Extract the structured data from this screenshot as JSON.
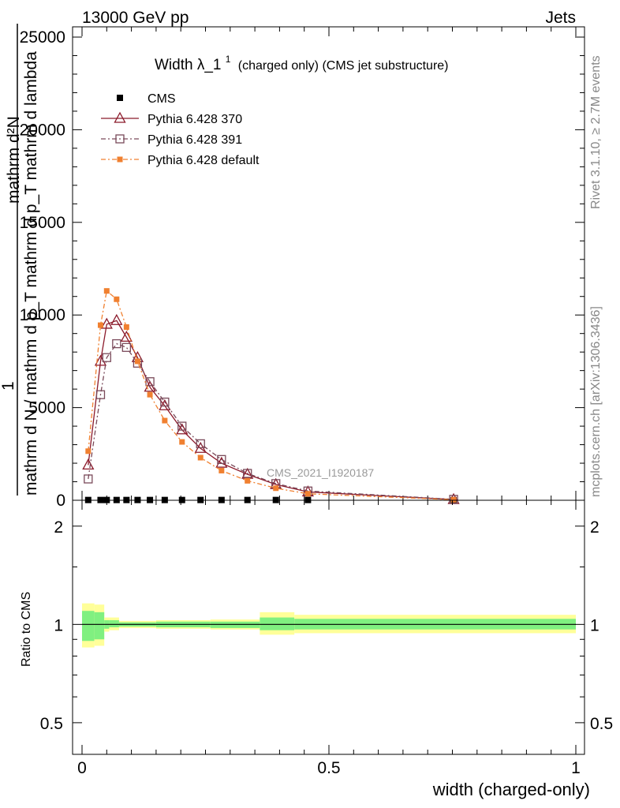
{
  "header": {
    "left": "13000 GeV pp",
    "right": "Jets"
  },
  "side": {
    "rivet": "Rivet 3.1.10, ≥ 2.7M events",
    "mcplots": "mcplots.cern.ch [arXiv:1306.3436]"
  },
  "main_panel": {
    "title_main": "Width λ_1",
    "title_sup": "1",
    "title_rest": "(charged only) (CMS jet substructure)",
    "ylabel_num": "1",
    "ylabel_den": "mathrm d N / mathrm d p_T mathrm d p_T mathrm d lambda",
    "ylabel_frac_num": "mathrm d²N",
    "watermark": "CMS_2021_I1920187",
    "yticks": [
      "0",
      "5000",
      "10000",
      "15000",
      "20000",
      "25000"
    ]
  },
  "ratio_panel": {
    "ylabel": "Ratio to CMS",
    "yticks": [
      "0.5",
      "1",
      "2"
    ],
    "xticks": [
      "0",
      "0.5",
      "1"
    ]
  },
  "xlabel": "width (charged-only)",
  "colors": {
    "cms": "#000000",
    "p370": "#8b1a2b",
    "p391": "#7a4a5a",
    "pdef": "#f08030",
    "band_inner": "#80f080",
    "band_outer": "#ffff99"
  },
  "chart_data": {
    "type": "line",
    "x": [
      0.0125,
      0.0375,
      0.05,
      0.07,
      0.09,
      0.1125,
      0.1375,
      0.1675,
      0.2025,
      0.24,
      0.2825,
      0.335,
      0.3925,
      0.4575,
      0.7525
    ],
    "xlim": [
      0,
      1
    ],
    "ylim": [
      0,
      25000
    ],
    "series": [
      {
        "name": "CMS",
        "marker": "square-filled",
        "values": [
          15,
          15,
          15,
          15,
          15,
          15,
          15,
          15,
          15,
          15,
          15,
          15,
          15,
          15,
          5
        ]
      },
      {
        "name": "Pythia 6.428 370",
        "marker": "triangle-open",
        "values": [
          1900,
          7500,
          9500,
          9700,
          8800,
          7700,
          6100,
          5100,
          3800,
          2800,
          2000,
          1400,
          850,
          450,
          40
        ]
      },
      {
        "name": "Pythia 6.428 391",
        "marker": "square-open",
        "values": [
          1150,
          5700,
          7700,
          8450,
          8250,
          7400,
          6400,
          5300,
          4000,
          3050,
          2200,
          1450,
          900,
          500,
          50
        ]
      },
      {
        "name": "Pythia 6.428 default",
        "marker": "square-filled-small",
        "values": [
          2650,
          9450,
          11300,
          10850,
          9350,
          7500,
          5700,
          4300,
          3150,
          2300,
          1600,
          1050,
          650,
          350,
          30
        ]
      }
    ],
    "ratio": {
      "ylim": [
        0.4,
        2.4
      ],
      "log": true,
      "bands": [
        {
          "x0": 0.0,
          "x1": 0.025,
          "inner": [
            0.89,
            1.1
          ],
          "outer": [
            0.85,
            1.16
          ]
        },
        {
          "x0": 0.025,
          "x1": 0.045,
          "inner": [
            0.9,
            1.09
          ],
          "outer": [
            0.86,
            1.15
          ]
        },
        {
          "x0": 0.045,
          "x1": 0.055,
          "inner": [
            0.97,
            1.03
          ],
          "outer": [
            0.95,
            1.05
          ]
        },
        {
          "x0": 0.055,
          "x1": 0.075,
          "inner": [
            0.98,
            1.03
          ],
          "outer": [
            0.96,
            1.05
          ]
        },
        {
          "x0": 0.075,
          "x1": 0.15,
          "inner": [
            0.985,
            1.015
          ],
          "outer": [
            0.975,
            1.025
          ]
        },
        {
          "x0": 0.15,
          "x1": 0.26,
          "inner": [
            0.98,
            1.02
          ],
          "outer": [
            0.97,
            1.03
          ]
        },
        {
          "x0": 0.26,
          "x1": 0.36,
          "inner": [
            0.975,
            1.02
          ],
          "outer": [
            0.965,
            1.035
          ]
        },
        {
          "x0": 0.36,
          "x1": 0.43,
          "inner": [
            0.96,
            1.05
          ],
          "outer": [
            0.93,
            1.09
          ]
        },
        {
          "x0": 0.43,
          "x1": 1.0,
          "inner": [
            0.965,
            1.04
          ],
          "outer": [
            0.94,
            1.07
          ]
        }
      ]
    }
  }
}
